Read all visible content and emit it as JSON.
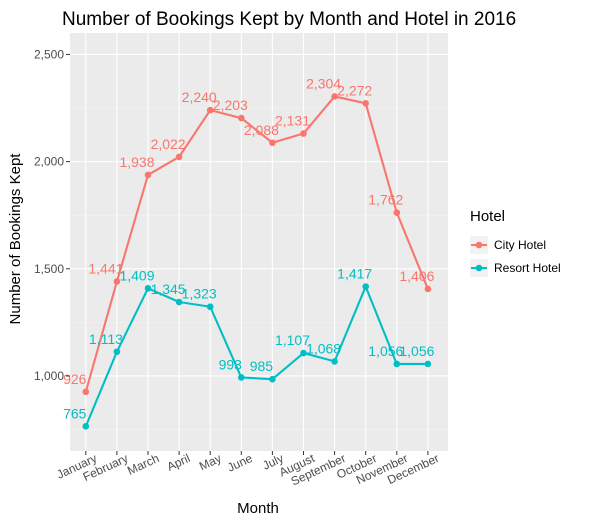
{
  "chart_data": {
    "type": "line",
    "title": "Number of Bookings Kept by Month and Hotel in 2016",
    "xlabel": "Month",
    "ylabel": "Number of Bookings Kept",
    "categories": [
      "January",
      "February",
      "March",
      "April",
      "May",
      "June",
      "July",
      "August",
      "September",
      "October",
      "November",
      "December"
    ],
    "ylim": [
      650,
      2600
    ],
    "yticks": [
      1000,
      1500,
      2000,
      2500
    ],
    "ytick_labels": [
      "1,000",
      "1,500",
      "2,000",
      "2,500"
    ],
    "grid": true,
    "legend": {
      "title": "Hotel",
      "position": "right"
    },
    "series": [
      {
        "name": "City Hotel",
        "color": "#F8766D",
        "values": [
          926,
          1441,
          1938,
          2022,
          2240,
          2203,
          2088,
          2131,
          2304,
          2272,
          1762,
          1406
        ],
        "labels": [
          "926",
          "1,441",
          "1,938",
          "2,022",
          "2,240",
          "2,203",
          "2,088",
          "2,131",
          "2,304",
          "2,272",
          "1,762",
          "1,406"
        ]
      },
      {
        "name": "Resort Hotel",
        "color": "#00BFC4",
        "values": [
          765,
          1113,
          1409,
          1345,
          1323,
          993,
          985,
          1107,
          1068,
          1417,
          1056,
          1056
        ],
        "labels": [
          "765",
          "1,113",
          "1,409",
          "1,345",
          "1,323",
          "993",
          "985",
          "1,107",
          "1,068",
          "1,417",
          "1,056",
          "1,056"
        ]
      }
    ]
  }
}
